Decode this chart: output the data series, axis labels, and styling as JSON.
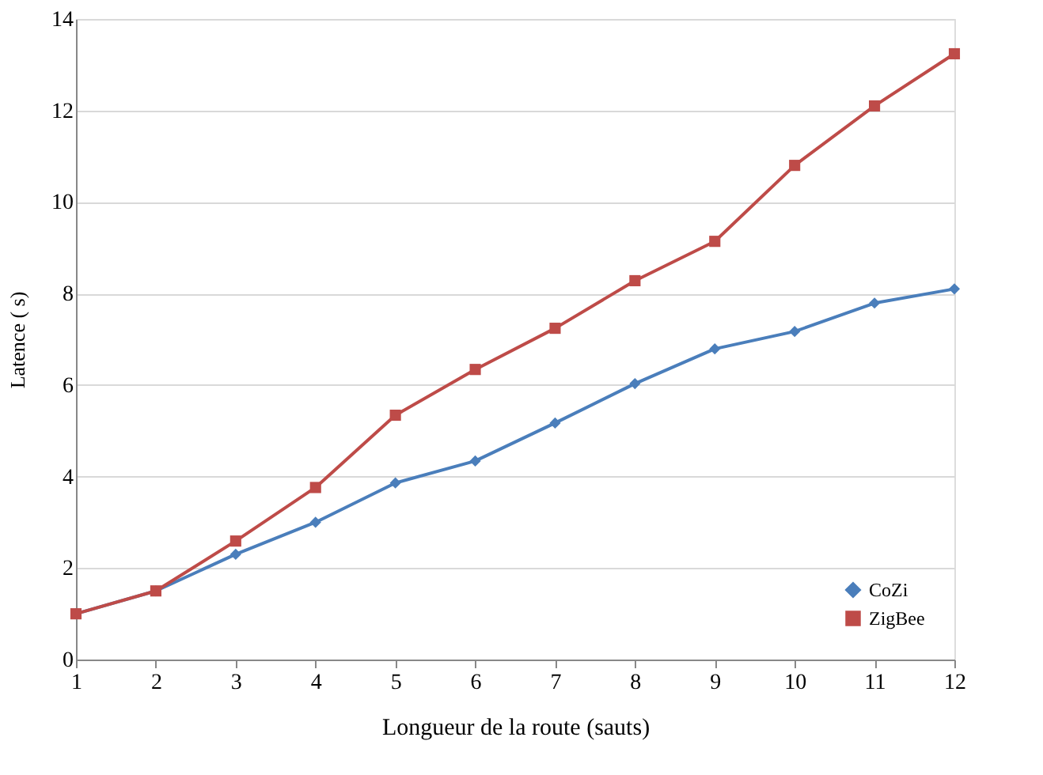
{
  "chart_data": {
    "type": "line",
    "xlabel": "Longueur de la route (sauts)",
    "ylabel": "Latence ( s)",
    "x": [
      1,
      2,
      3,
      4,
      5,
      6,
      7,
      8,
      9,
      10,
      11,
      12
    ],
    "series": [
      {
        "name": "CoZi",
        "color": "#4a7ebb",
        "marker": "diamond",
        "values": [
          1.0,
          1.5,
          2.3,
          3.0,
          3.86,
          4.34,
          5.17,
          6.03,
          6.79,
          7.17,
          7.79,
          8.1
        ]
      },
      {
        "name": "ZigBee",
        "color": "#be4b48",
        "marker": "square",
        "values": [
          1.0,
          1.5,
          2.59,
          3.76,
          5.34,
          6.34,
          7.24,
          8.28,
          9.14,
          10.8,
          12.1,
          13.24
        ]
      }
    ],
    "xlim": [
      1,
      12
    ],
    "xticks": [
      1,
      2,
      3,
      4,
      5,
      6,
      7,
      8,
      9,
      10,
      11,
      12
    ],
    "ylim": [
      0,
      14
    ],
    "yticks": [
      0,
      2,
      4,
      6,
      8,
      10,
      12,
      14
    ],
    "grid": "y",
    "legend": "bottom right",
    "line_style": "solid"
  }
}
